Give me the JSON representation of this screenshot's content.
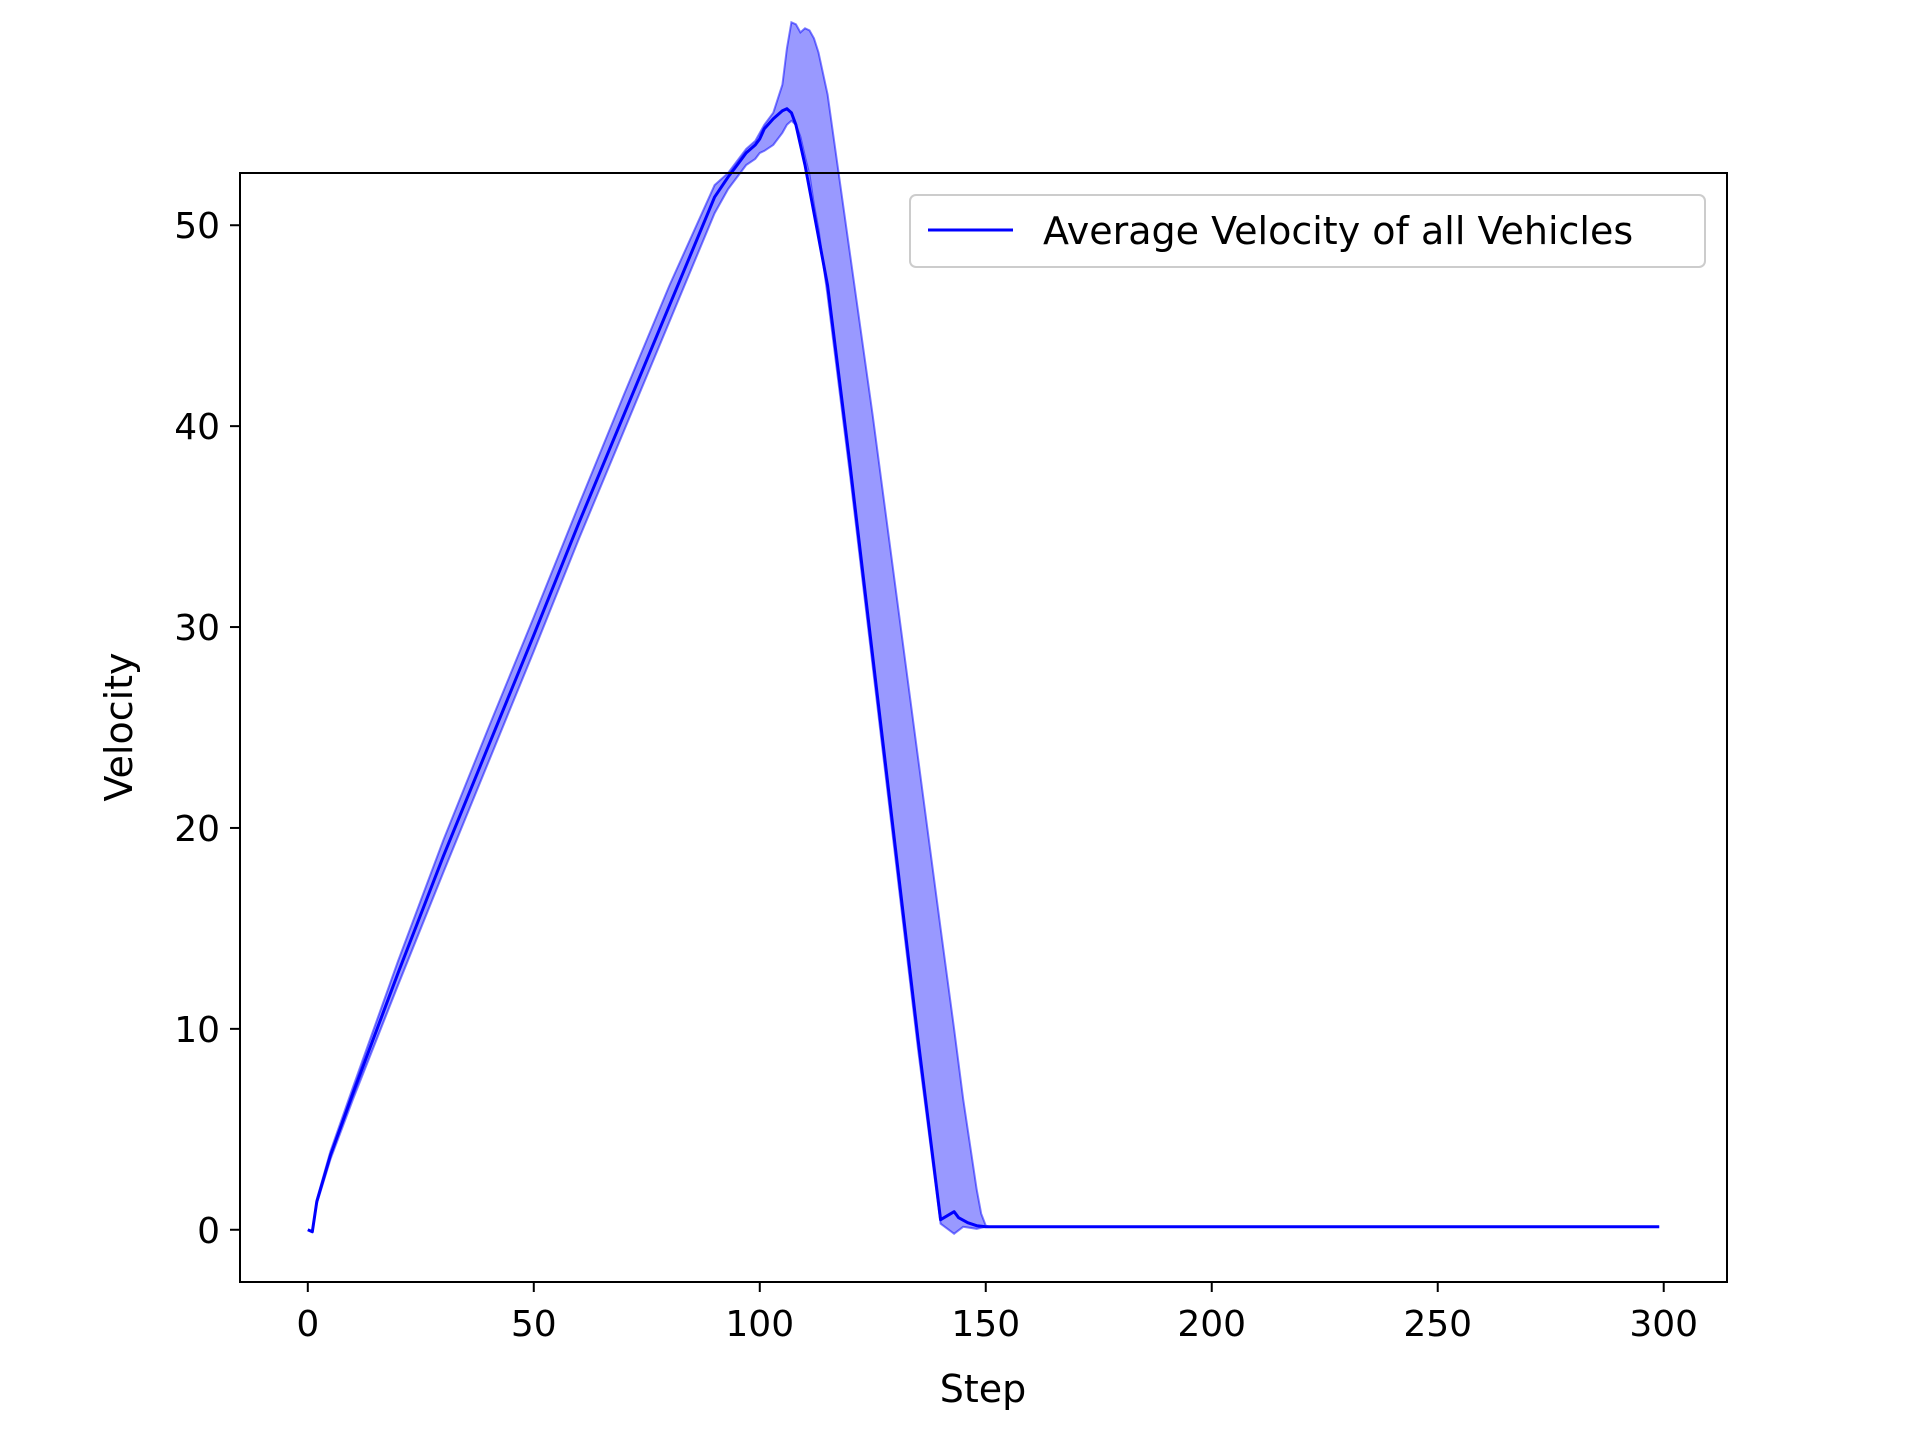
{
  "chart_data": {
    "type": "line",
    "title": "",
    "xlabel": "Step",
    "ylabel": "Velocity",
    "xlim": [
      -15,
      314
    ],
    "ylim": [
      -2.6,
      52.6
    ],
    "xticks": [
      0,
      50,
      100,
      150,
      200,
      250,
      300
    ],
    "yticks": [
      0,
      10,
      20,
      30,
      40,
      50
    ],
    "grid": false,
    "legend": {
      "placement": "top-right",
      "entries": [
        "Average Velocity of all Vehicles"
      ]
    },
    "colors": {
      "line": "#0000ff",
      "band": "#0000ff",
      "band_opacity": 0.4
    },
    "series": [
      {
        "name": "Average Velocity of all Vehicles",
        "x": [
          0,
          1,
          2,
          5,
          10,
          20,
          30,
          40,
          50,
          60,
          70,
          80,
          90,
          93,
          95,
          97,
          99,
          100,
          101,
          103,
          105,
          106,
          107,
          108,
          110,
          115,
          120,
          125,
          130,
          135,
          140,
          143,
          144,
          146,
          148,
          150,
          160,
          200,
          250,
          299
        ],
        "y": [
          0,
          -0.1,
          1.4,
          3.7,
          6.8,
          12.8,
          18.6,
          24.1,
          29.6,
          35.2,
          40.6,
          46.0,
          51.4,
          52.4,
          53.0,
          53.6,
          54.0,
          54.3,
          54.8,
          55.3,
          55.7,
          55.8,
          55.6,
          55.0,
          53.0,
          47.0,
          38.0,
          28.5,
          19.0,
          9.5,
          0.5,
          0.9,
          0.6,
          0.35,
          0.2,
          0.15,
          0.15,
          0.15,
          0.15,
          0.15
        ]
      }
    ],
    "band": {
      "x": [
        0,
        1,
        2,
        5,
        10,
        20,
        30,
        40,
        50,
        60,
        70,
        80,
        90,
        93,
        95,
        97,
        99,
        100,
        101,
        103,
        105,
        106,
        107,
        108,
        109,
        110,
        111,
        112,
        113,
        115,
        120,
        125,
        130,
        135,
        140,
        143,
        145,
        148,
        149,
        150,
        151,
        160,
        200,
        250,
        299
      ],
      "upper": [
        0,
        -0.1,
        1.5,
        3.9,
        7.1,
        13.4,
        19.4,
        25.0,
        30.5,
        36.1,
        41.6,
        47.0,
        52.0,
        52.6,
        53.2,
        53.8,
        54.2,
        54.6,
        55.0,
        55.6,
        57.0,
        58.8,
        60.1,
        60.0,
        59.6,
        59.8,
        59.7,
        59.3,
        58.6,
        56.5,
        48.5,
        40.5,
        32.0,
        23.5,
        15.0,
        10.0,
        6.5,
        2.0,
        0.8,
        0.2,
        0.15,
        0.15,
        0.15,
        0.15,
        0.15
      ],
      "lower": [
        0,
        -0.1,
        1.3,
        3.5,
        6.5,
        12.2,
        17.8,
        23.3,
        28.8,
        34.4,
        39.8,
        45.2,
        50.6,
        51.8,
        52.4,
        53.0,
        53.3,
        53.6,
        53.7,
        54.0,
        54.6,
        55.0,
        55.2,
        55.0,
        54.4,
        53.4,
        52.5,
        51.0,
        49.8,
        46.5,
        37.5,
        28.0,
        18.5,
        9.0,
        0.3,
        -0.2,
        0.15,
        0.05,
        0.1,
        0.15,
        0.15,
        0.15,
        0.15,
        0.15,
        0.15
      ]
    }
  }
}
